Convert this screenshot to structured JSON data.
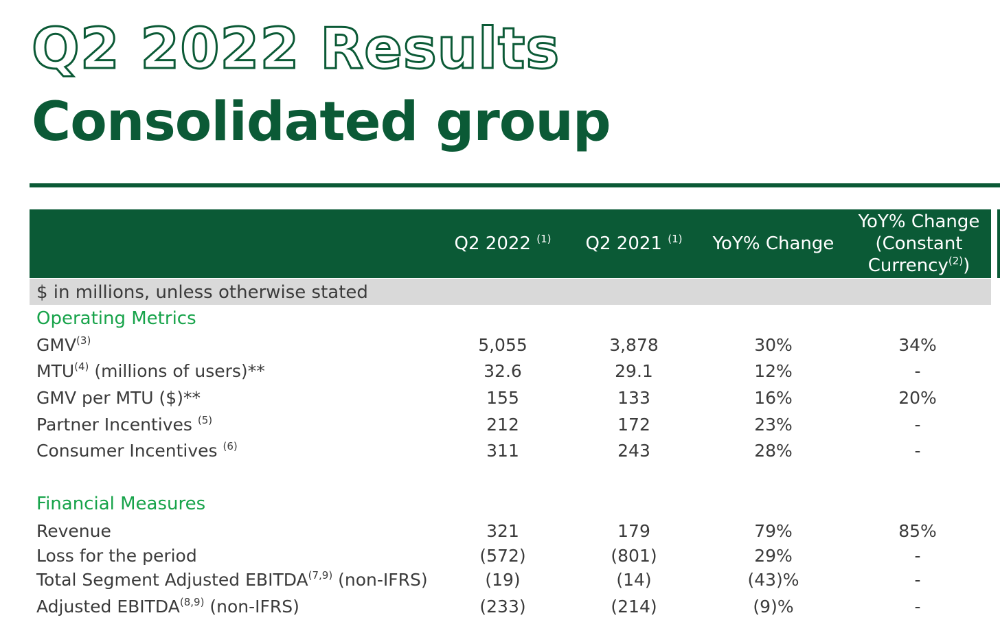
{
  "title": {
    "line1": "Q2 2022 Results",
    "line2": "Consolidated group"
  },
  "colors": {
    "brand_green": "#0b5a36",
    "section_green": "#17a34a",
    "units_bar_gray": "#d9d9d9",
    "text": "#3b3b3b"
  },
  "table": {
    "headers": [
      {
        "text": "Q2 2022",
        "sup": "(1)"
      },
      {
        "text": "Q2 2021",
        "sup": "(1)"
      },
      {
        "text": "YoY% Change",
        "sup": ""
      },
      {
        "line1": "YoY% Change",
        "line2": "(Constant",
        "line3": "Currency",
        "sup": "(2)",
        "suffix": ")"
      }
    ],
    "units": "$ in millions, unless otherwise stated",
    "sections": [
      {
        "title": "Operating Metrics",
        "rows": [
          {
            "label": "GMV",
            "sup": "(3)",
            "suffix": "",
            "values": [
              "5,055",
              "3,878",
              "30%",
              "34%"
            ]
          },
          {
            "label": "MTU",
            "sup": "(4)",
            "suffix": " (millions of users)**",
            "values": [
              "32.6",
              "29.1",
              "12%",
              "-"
            ]
          },
          {
            "label": "GMV per MTU ($)**",
            "sup": "",
            "suffix": "",
            "values": [
              "155",
              "133",
              "16%",
              "20%"
            ]
          },
          {
            "label": "Partner Incentives ",
            "sup": "(5)",
            "suffix": "",
            "values": [
              "212",
              "172",
              "23%",
              "-"
            ]
          },
          {
            "label": "Consumer Incentives ",
            "sup": "(6)",
            "suffix": "",
            "values": [
              "311",
              "243",
              "28%",
              "-"
            ]
          }
        ]
      },
      {
        "title": "Financial Measures",
        "rows": [
          {
            "label": "Revenue",
            "sup": "",
            "suffix": "",
            "values": [
              "321",
              "179",
              "79%",
              "85%"
            ]
          },
          {
            "label": "Loss for the period",
            "sup": "",
            "suffix": "",
            "values": [
              "(572)",
              "(801)",
              "29%",
              "-"
            ]
          },
          {
            "label": "Total Segment Adjusted EBITDA",
            "sup": "(7,9)",
            "suffix": " (non-IFRS)",
            "values": [
              "(19)",
              "(14)",
              "(43)%",
              "-"
            ]
          },
          {
            "label": "Adjusted EBITDA",
            "sup": "(8,9)",
            "suffix": " (non-IFRS)",
            "values": [
              "(233)",
              "(214)",
              "(9)%",
              "-"
            ]
          }
        ]
      }
    ]
  }
}
